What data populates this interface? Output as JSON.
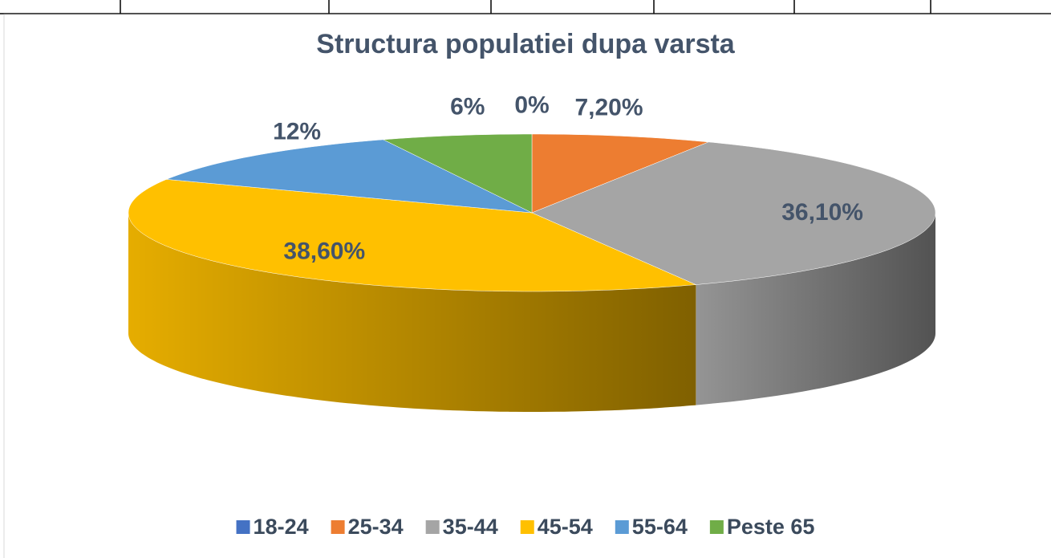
{
  "chart_data": {
    "type": "pie3d",
    "title": "Structura populatiei dupa varsta",
    "categories": [
      "18-24",
      "25-34",
      "35-44",
      "45-54",
      "55-64",
      "Peste 65"
    ],
    "values": [
      0,
      7.2,
      36.1,
      38.6,
      12,
      6
    ],
    "value_labels": [
      "0%",
      "7,20%",
      "36,10%",
      "38,60%",
      "12%",
      "6%"
    ],
    "colors": [
      "#4472c4",
      "#ed7d31",
      "#a5a5a5",
      "#ffc000",
      "#5b9bd5",
      "#70ad47"
    ],
    "legend": "bottom"
  }
}
